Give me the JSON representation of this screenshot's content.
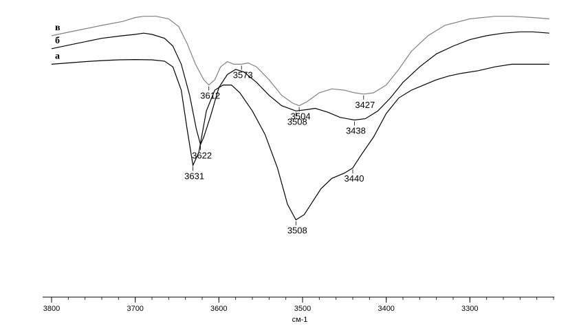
{
  "chart_data": {
    "type": "line",
    "xlabel": "см-1",
    "x_ticks": [
      3800,
      3700,
      3600,
      3500,
      3400,
      3300
    ],
    "xlim": [
      3800,
      3200
    ],
    "ylim": [
      0,
      1
    ],
    "grid": false,
    "series": [
      {
        "name": "а",
        "color": "#000000",
        "points": [
          [
            3800,
            0.8
          ],
          [
            3780,
            0.805
          ],
          [
            3760,
            0.81
          ],
          [
            3740,
            0.814
          ],
          [
            3720,
            0.817
          ],
          [
            3700,
            0.818
          ],
          [
            3680,
            0.817
          ],
          [
            3665,
            0.812
          ],
          [
            3655,
            0.79
          ],
          [
            3645,
            0.7
          ],
          [
            3638,
            0.55
          ],
          [
            3631,
            0.41
          ],
          [
            3624,
            0.46
          ],
          [
            3615,
            0.62
          ],
          [
            3605,
            0.7
          ],
          [
            3595,
            0.72
          ],
          [
            3585,
            0.72
          ],
          [
            3575,
            0.69
          ],
          [
            3560,
            0.62
          ],
          [
            3545,
            0.53
          ],
          [
            3530,
            0.4
          ],
          [
            3518,
            0.26
          ],
          [
            3508,
            0.2
          ],
          [
            3498,
            0.22
          ],
          [
            3488,
            0.27
          ],
          [
            3478,
            0.32
          ],
          [
            3465,
            0.36
          ],
          [
            3450,
            0.38
          ],
          [
            3440,
            0.4
          ],
          [
            3430,
            0.45
          ],
          [
            3415,
            0.52
          ],
          [
            3400,
            0.61
          ],
          [
            3385,
            0.67
          ],
          [
            3370,
            0.7
          ],
          [
            3355,
            0.72
          ],
          [
            3340,
            0.74
          ],
          [
            3325,
            0.755
          ],
          [
            3310,
            0.765
          ],
          [
            3290,
            0.775
          ],
          [
            3270,
            0.79
          ],
          [
            3250,
            0.8
          ],
          [
            3230,
            0.8
          ],
          [
            3205,
            0.8
          ]
        ]
      },
      {
        "name": "б",
        "color": "#000000",
        "points": [
          [
            3800,
            0.86
          ],
          [
            3770,
            0.88
          ],
          [
            3740,
            0.9
          ],
          [
            3715,
            0.91
          ],
          [
            3700,
            0.915
          ],
          [
            3690,
            0.92
          ],
          [
            3680,
            0.915
          ],
          [
            3665,
            0.9
          ],
          [
            3655,
            0.87
          ],
          [
            3645,
            0.8
          ],
          [
            3635,
            0.68
          ],
          [
            3627,
            0.55
          ],
          [
            3622,
            0.49
          ],
          [
            3618,
            0.52
          ],
          [
            3610,
            0.6
          ],
          [
            3600,
            0.71
          ],
          [
            3590,
            0.76
          ],
          [
            3580,
            0.78
          ],
          [
            3570,
            0.77
          ],
          [
            3555,
            0.73
          ],
          [
            3540,
            0.68
          ],
          [
            3525,
            0.64
          ],
          [
            3508,
            0.62
          ],
          [
            3495,
            0.625
          ],
          [
            3485,
            0.63
          ],
          [
            3470,
            0.615
          ],
          [
            3455,
            0.595
          ],
          [
            3438,
            0.585
          ],
          [
            3425,
            0.59
          ],
          [
            3410,
            0.62
          ],
          [
            3395,
            0.67
          ],
          [
            3380,
            0.73
          ],
          [
            3360,
            0.79
          ],
          [
            3340,
            0.84
          ],
          [
            3320,
            0.87
          ],
          [
            3300,
            0.895
          ],
          [
            3280,
            0.91
          ],
          [
            3260,
            0.92
          ],
          [
            3240,
            0.925
          ],
          [
            3225,
            0.925
          ],
          [
            3205,
            0.92
          ]
        ]
      },
      {
        "name": "в",
        "color": "#808080",
        "points": [
          [
            3800,
            0.91
          ],
          [
            3770,
            0.93
          ],
          [
            3740,
            0.95
          ],
          [
            3715,
            0.965
          ],
          [
            3700,
            0.98
          ],
          [
            3690,
            0.985
          ],
          [
            3675,
            0.985
          ],
          [
            3660,
            0.975
          ],
          [
            3648,
            0.945
          ],
          [
            3638,
            0.88
          ],
          [
            3628,
            0.8
          ],
          [
            3618,
            0.74
          ],
          [
            3612,
            0.72
          ],
          [
            3605,
            0.74
          ],
          [
            3598,
            0.79
          ],
          [
            3590,
            0.81
          ],
          [
            3582,
            0.8
          ],
          [
            3573,
            0.8
          ],
          [
            3565,
            0.805
          ],
          [
            3555,
            0.79
          ],
          [
            3540,
            0.74
          ],
          [
            3525,
            0.68
          ],
          [
            3512,
            0.65
          ],
          [
            3504,
            0.64
          ],
          [
            3495,
            0.655
          ],
          [
            3480,
            0.69
          ],
          [
            3465,
            0.705
          ],
          [
            3450,
            0.7
          ],
          [
            3438,
            0.69
          ],
          [
            3427,
            0.685
          ],
          [
            3415,
            0.69
          ],
          [
            3400,
            0.72
          ],
          [
            3385,
            0.78
          ],
          [
            3370,
            0.85
          ],
          [
            3350,
            0.91
          ],
          [
            3330,
            0.95
          ],
          [
            3300,
            0.975
          ],
          [
            3270,
            0.985
          ],
          [
            3250,
            0.985
          ],
          [
            3225,
            0.98
          ],
          [
            3205,
            0.975
          ]
        ]
      }
    ],
    "peaks": [
      {
        "text": "3612",
        "x": 3612,
        "series": "в"
      },
      {
        "text": "3573",
        "x": 3573,
        "series": "в"
      },
      {
        "text": "3504",
        "x": 3504,
        "series": "в"
      },
      {
        "text": "3427",
        "x": 3427,
        "series": "в"
      },
      {
        "text": "3622",
        "x": 3622,
        "series": "б"
      },
      {
        "text": "3508",
        "x": 3508,
        "series": "б"
      },
      {
        "text": "3438",
        "x": 3438,
        "series": "б"
      },
      {
        "text": "3631",
        "x": 3631,
        "series": "а"
      },
      {
        "text": "3440",
        "x": 3440,
        "series": "а"
      },
      {
        "text": "3508",
        "x": 3508,
        "series": "а"
      }
    ]
  }
}
